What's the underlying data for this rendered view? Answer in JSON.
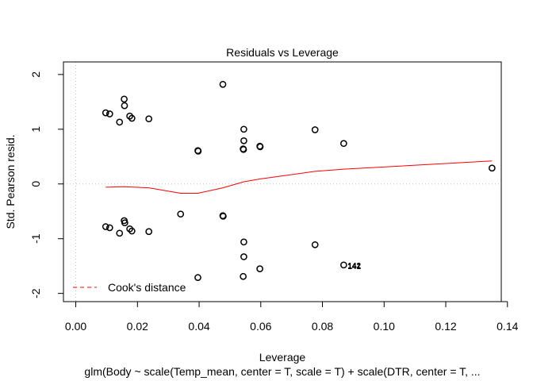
{
  "chart_data": {
    "type": "scatter",
    "title": "Residuals vs Leverage",
    "xlabel": "Leverage",
    "ylabel": "Std. Pearson resid.",
    "subtitle": "glm(Body ~ scale(Temp_mean, center = T, scale = T) + scale(DTR, center = T, ...",
    "xlim": [
      -0.004,
      0.138
    ],
    "ylim": [
      -2.15,
      2.23
    ],
    "x_ticks": [
      0.0,
      0.02,
      0.04,
      0.06,
      0.08,
      0.1,
      0.12,
      0.14
    ],
    "x_tick_labels": [
      "0.00",
      "0.02",
      "0.04",
      "0.06",
      "0.08",
      "0.10",
      "0.12",
      "0.14"
    ],
    "y_ticks": [
      -2,
      -1,
      0,
      1,
      2
    ],
    "y_tick_labels": [
      "-2",
      "-1",
      "0",
      "1",
      "2"
    ],
    "grid": false,
    "reference_lines": {
      "x": 0,
      "y": 0,
      "style": "dotted",
      "color": "#bbbbbb"
    },
    "point_color": "#000000",
    "points": [
      {
        "x": 0.0477,
        "y": 1.82
      },
      {
        "x": 0.0157,
        "y": 1.55
      },
      {
        "x": 0.0158,
        "y": 1.43
      },
      {
        "x": 0.0097,
        "y": 1.3
      },
      {
        "x": 0.011,
        "y": 1.28
      },
      {
        "x": 0.0175,
        "y": 1.24
      },
      {
        "x": 0.0182,
        "y": 1.2
      },
      {
        "x": 0.0237,
        "y": 1.19
      },
      {
        "x": 0.0142,
        "y": 1.13
      },
      {
        "x": 0.0545,
        "y": 1.0
      },
      {
        "x": 0.0776,
        "y": 0.99
      },
      {
        "x": 0.0545,
        "y": 0.79
      },
      {
        "x": 0.0869,
        "y": 0.74
      },
      {
        "x": 0.0597,
        "y": 0.69
      },
      {
        "x": 0.0598,
        "y": 0.68
      },
      {
        "x": 0.0543,
        "y": 0.64
      },
      {
        "x": 0.0544,
        "y": 0.63
      },
      {
        "x": 0.0396,
        "y": 0.61
      },
      {
        "x": 0.0397,
        "y": 0.6
      },
      {
        "x": 0.135,
        "y": 0.29
      },
      {
        "x": 0.034,
        "y": -0.55
      },
      {
        "x": 0.0477,
        "y": -0.58
      },
      {
        "x": 0.0478,
        "y": -0.59
      },
      {
        "x": 0.0157,
        "y": -0.67
      },
      {
        "x": 0.0159,
        "y": -0.71
      },
      {
        "x": 0.0097,
        "y": -0.78
      },
      {
        "x": 0.011,
        "y": -0.8
      },
      {
        "x": 0.0175,
        "y": -0.82
      },
      {
        "x": 0.0182,
        "y": -0.86
      },
      {
        "x": 0.0237,
        "y": -0.87
      },
      {
        "x": 0.0142,
        "y": -0.9
      },
      {
        "x": 0.0545,
        "y": -1.06
      },
      {
        "x": 0.0776,
        "y": -1.11
      },
      {
        "x": 0.0545,
        "y": -1.33
      },
      {
        "x": 0.0869,
        "y": -1.48
      },
      {
        "x": 0.0597,
        "y": -1.55
      },
      {
        "x": 0.0543,
        "y": -1.69
      },
      {
        "x": 0.0396,
        "y": -1.71
      }
    ],
    "point_labels": [
      {
        "x": 0.0869,
        "y": -1.48,
        "text": "142"
      },
      {
        "x": 0.0869,
        "y": -1.48,
        "text": "141"
      }
    ],
    "smoother": {
      "color": "#ff0000",
      "x": [
        0.0097,
        0.0157,
        0.0237,
        0.034,
        0.0396,
        0.0477,
        0.0545,
        0.0597,
        0.0776,
        0.0869,
        0.135
      ],
      "y": [
        -0.06,
        -0.05,
        -0.07,
        -0.17,
        -0.17,
        -0.07,
        0.04,
        0.09,
        0.23,
        0.27,
        0.42
      ]
    },
    "legend": {
      "position": "bottom-left",
      "label": "Cook's distance",
      "line_color": "#ff0000",
      "line_style": "dashed"
    }
  }
}
